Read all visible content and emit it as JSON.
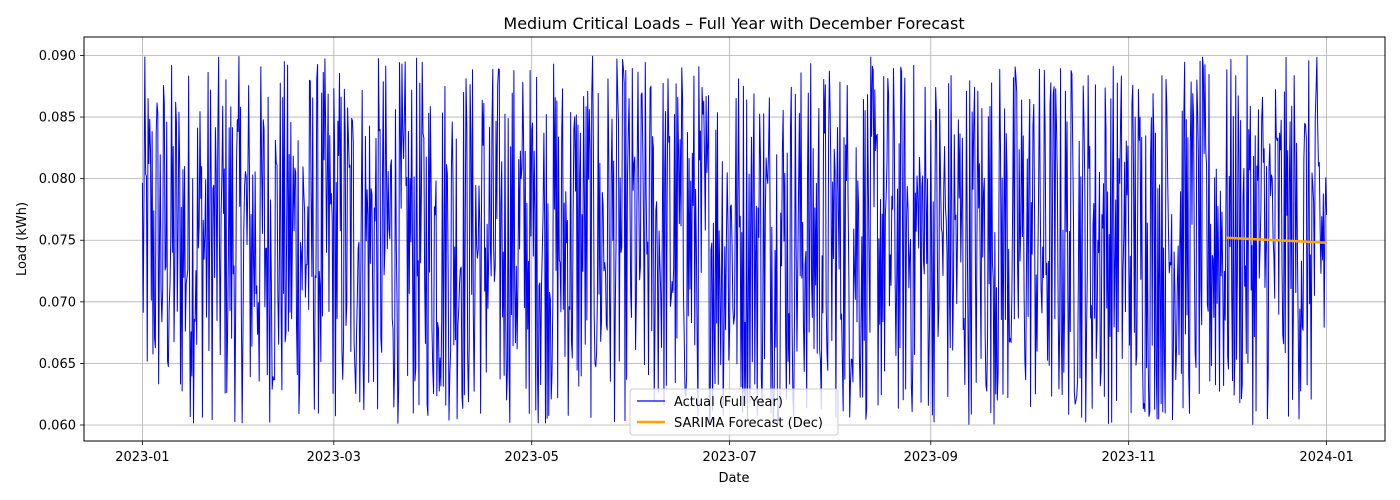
{
  "chart_data": {
    "type": "line",
    "title": "Medium Critical Loads – Full Year with December Forecast",
    "xlabel": "Date",
    "ylabel": "Load (kWh)",
    "x_axis_type": "date",
    "xlim": [
      "2022-12-14",
      "2024-01-19"
    ],
    "ylim": [
      0.0587,
      0.0915
    ],
    "x_ticks": [
      {
        "date": "2023-01-01",
        "label": "2023-01"
      },
      {
        "date": "2023-03-01",
        "label": "2023-03"
      },
      {
        "date": "2023-05-01",
        "label": "2023-05"
      },
      {
        "date": "2023-07-01",
        "label": "2023-07"
      },
      {
        "date": "2023-09-01",
        "label": "2023-09"
      },
      {
        "date": "2023-11-01",
        "label": "2023-11"
      },
      {
        "date": "2024-01-01",
        "label": "2024-01"
      }
    ],
    "y_ticks": [
      {
        "value": 0.06,
        "label": "0.060"
      },
      {
        "value": 0.065,
        "label": "0.065"
      },
      {
        "value": 0.07,
        "label": "0.070"
      },
      {
        "value": 0.075,
        "label": "0.075"
      },
      {
        "value": 0.08,
        "label": "0.080"
      },
      {
        "value": 0.085,
        "label": "0.085"
      },
      {
        "value": 0.09,
        "label": "0.090"
      }
    ],
    "grid": true,
    "legend_position": "bottom-center",
    "series": [
      {
        "name": "Actual (Full Year)",
        "color": "#0000ff",
        "x_range": [
          "2023-01-01",
          "2024-01-01"
        ],
        "points_per_day": 4,
        "value_range": [
          0.06,
          0.09
        ],
        "note_values": "dense pseudo-random fluctuation between 0.060 and 0.090"
      },
      {
        "name": "SARIMA Forecast (Dec)",
        "color": "#ffa500",
        "x": [
          "2023-12-01",
          "2024-01-01"
        ],
        "y": [
          0.0752,
          0.0748
        ]
      }
    ]
  }
}
